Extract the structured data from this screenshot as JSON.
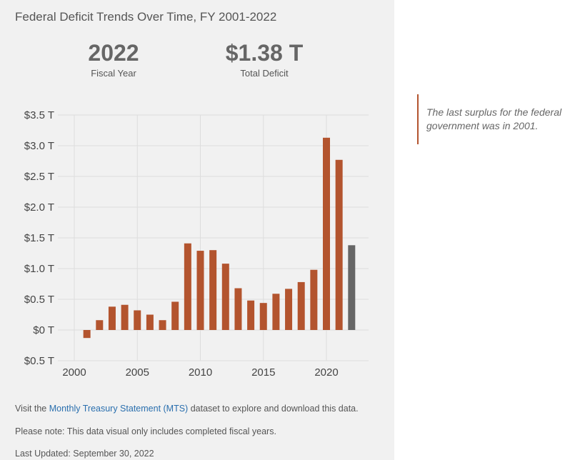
{
  "title": "Federal Deficit Trends Over Time, FY 2001-2022",
  "stats": {
    "year_value": "2022",
    "year_label": "Fiscal Year",
    "deficit_value": "$1.38 T",
    "deficit_label": "Total Deficit"
  },
  "note": "The last surplus for the federal government was in 2001.",
  "footer": {
    "visit_pre": "Visit the ",
    "link": "Monthly Treasury Statement (MTS)",
    "visit_post": " dataset to explore and download this data.",
    "please_note": "Please note: This data visual only includes completed fiscal years.",
    "updated": "Last Updated: September 30, 2022"
  },
  "chart_data": {
    "type": "bar",
    "title": "Federal Deficit Trends Over Time, FY 2001-2022",
    "x": [
      2001,
      2002,
      2003,
      2004,
      2005,
      2006,
      2007,
      2008,
      2009,
      2010,
      2011,
      2012,
      2013,
      2014,
      2015,
      2016,
      2017,
      2018,
      2019,
      2020,
      2021,
      2022
    ],
    "values": [
      -0.13,
      0.16,
      0.38,
      0.41,
      0.32,
      0.25,
      0.16,
      0.46,
      1.41,
      1.29,
      1.3,
      1.08,
      0.68,
      0.48,
      0.44,
      0.59,
      0.67,
      0.78,
      0.98,
      3.13,
      2.77,
      1.38
    ],
    "ylim": [
      -0.5,
      3.5
    ],
    "xlim": [
      1998.7,
      2023.3
    ],
    "yticks": [
      3.5,
      3.0,
      2.5,
      2.0,
      1.5,
      1.0,
      0.5,
      0,
      -0.5
    ],
    "ytick_labels": [
      "$3.5 T",
      "$3.0 T",
      "$2.5 T",
      "$2.0 T",
      "$1.5 T",
      "$1.0 T",
      "$0.5 T",
      "$0 T",
      "$0.5 T"
    ],
    "xticks": [
      2000,
      2005,
      2010,
      2015,
      2020
    ],
    "xtick_labels": [
      "2000",
      "2005",
      "2010",
      "2015",
      "2020"
    ],
    "colors": {
      "bar": "#b3542e",
      "highlight": "#666666",
      "grid": "#dddddd"
    },
    "highlight_year": 2022,
    "grid": true
  }
}
